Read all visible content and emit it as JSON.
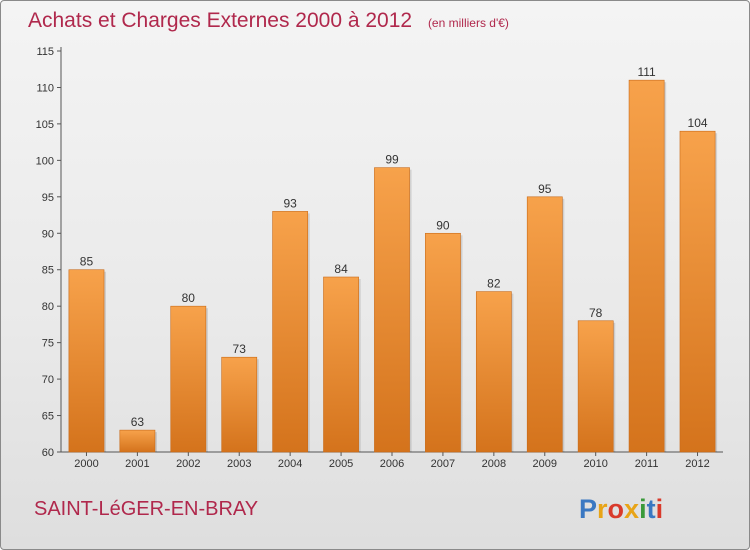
{
  "chart_data": {
    "type": "bar",
    "title": "Achats et Charges Externes 2000 à 2012",
    "subtitle": "(en milliers d'€)",
    "categories": [
      "2000",
      "2001",
      "2002",
      "2003",
      "2004",
      "2005",
      "2006",
      "2007",
      "2008",
      "2009",
      "2010",
      "2011",
      "2012"
    ],
    "values": [
      85,
      63,
      80,
      73,
      93,
      84,
      99,
      90,
      82,
      95,
      78,
      111,
      104
    ],
    "xlabel": "",
    "ylabel": "",
    "ylim": [
      60,
      115
    ],
    "yticks": [
      60,
      65,
      70,
      75,
      80,
      85,
      90,
      95,
      100,
      105,
      110,
      115
    ],
    "grid": false,
    "legend": "none",
    "bar_color": "#f29334",
    "accent_color": "#b0284c"
  },
  "footer": {
    "town": "SAINT-LéGER-EN-BRAY",
    "logo_text": "Proxiti",
    "logo_colors": [
      "#3a78c2",
      "#e8a417",
      "#d93a2b",
      "#e8a417",
      "#3a9a3a",
      "#3a78c2",
      "#d93a2b"
    ]
  }
}
